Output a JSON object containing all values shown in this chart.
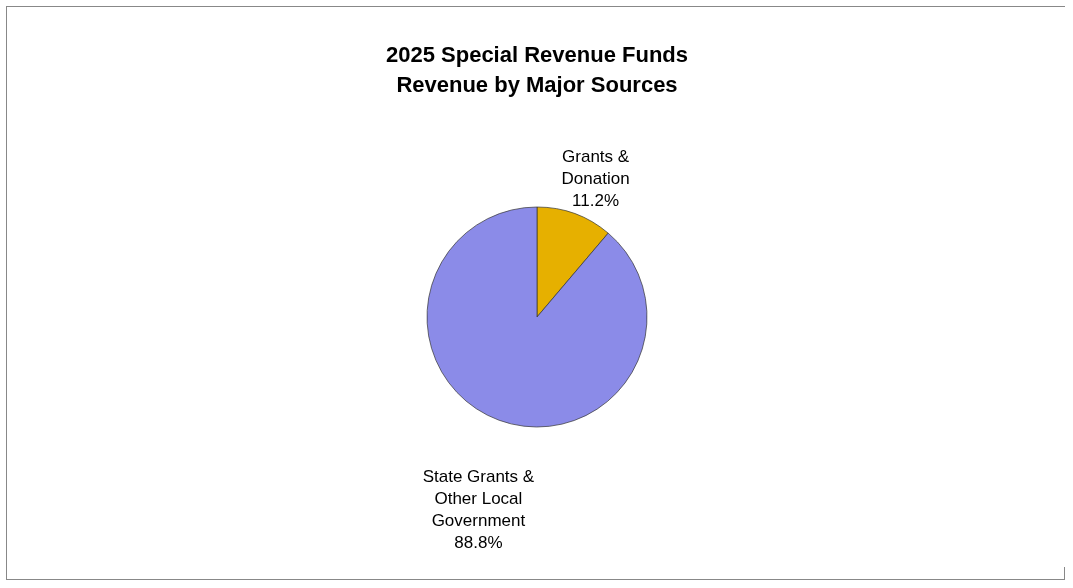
{
  "chart_data": {
    "type": "pie",
    "title": "2025 Special Revenue Funds",
    "subtitle": "Revenue by Major Sources",
    "categories": [
      "Grants & Donation",
      "State Grants & Other Local Government"
    ],
    "values": [
      11.2,
      88.8
    ],
    "value_labels": [
      "11.2%",
      "88.8%"
    ],
    "colors": [
      "#e6b000",
      "#8b8be8"
    ]
  }
}
